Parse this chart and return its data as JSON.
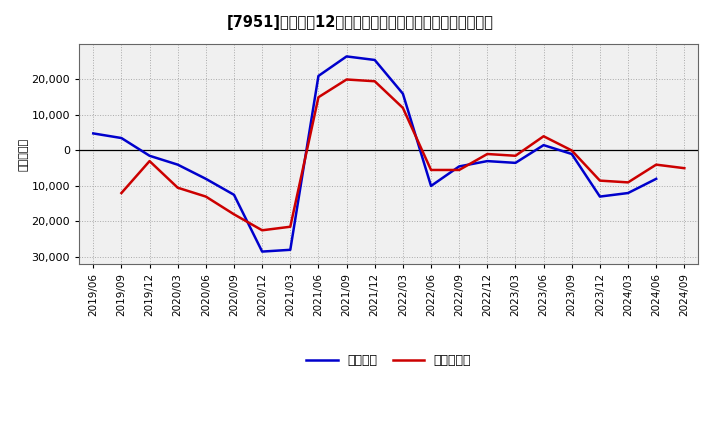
{
  "title": "[7951]　利益だ12か月移動合計の対前年同期増減額の推移",
  "ylabel": "（百万円）",
  "x_labels": [
    "2019/06",
    "2019/09",
    "2019/12",
    "2020/03",
    "2020/06",
    "2020/09",
    "2020/12",
    "2021/03",
    "2021/06",
    "2021/09",
    "2021/12",
    "2022/03",
    "2022/06",
    "2022/09",
    "2022/12",
    "2023/03",
    "2023/06",
    "2023/09",
    "2023/12",
    "2024/03",
    "2024/06",
    "2024/09"
  ],
  "keijo_rieki": [
    4800,
    3500,
    -1500,
    -4000,
    -8000,
    -12500,
    -28500,
    -28000,
    21000,
    26500,
    25500,
    16000,
    -10000,
    -4500,
    -3000,
    -3500,
    1500,
    -1000,
    -13000,
    -12000,
    -8000,
    null
  ],
  "junrieki": [
    null,
    -12000,
    -3000,
    -10500,
    -13000,
    -18000,
    -22500,
    -21500,
    15000,
    20000,
    19500,
    12000,
    -5500,
    -5500,
    -1000,
    -1500,
    4000,
    0,
    -8500,
    -9000,
    -4000,
    -5000
  ],
  "keijo_color": "#0000cc",
  "junrieki_color": "#cc0000",
  "ylim": [
    -32000,
    30000
  ],
  "yticks": [
    -30000,
    -20000,
    -10000,
    0,
    10000,
    20000
  ],
  "background_color": "#ffffff",
  "plot_bg_color": "#f0f0f0",
  "grid_color": "#aaaaaa",
  "legend_labels": [
    "経常利益",
    "当期純利益"
  ]
}
